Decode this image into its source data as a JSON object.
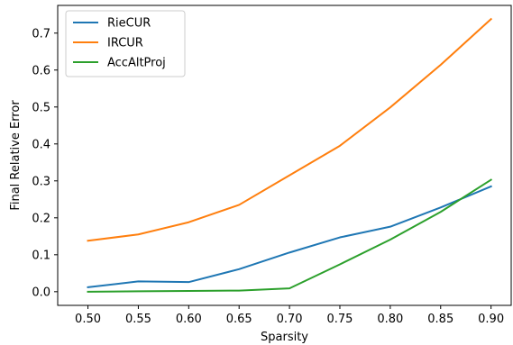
{
  "chart_data": {
    "type": "line",
    "title": "",
    "xlabel": "Sparsity",
    "ylabel": "Final Relative Error",
    "xlim": [
      0.47,
      0.92
    ],
    "ylim": [
      -0.037,
      0.775
    ],
    "x": [
      0.5,
      0.55,
      0.6,
      0.65,
      0.7,
      0.75,
      0.8,
      0.85,
      0.9
    ],
    "xticks": [
      "0.50",
      "0.55",
      "0.60",
      "0.65",
      "0.70",
      "0.75",
      "0.80",
      "0.85",
      "0.90"
    ],
    "yticks": [
      "0.0",
      "0.1",
      "0.2",
      "0.3",
      "0.4",
      "0.5",
      "0.6",
      "0.7"
    ],
    "grid": false,
    "legend_position": "top-left",
    "series": [
      {
        "name": "RieCUR",
        "color": "#1f77b4",
        "values": [
          0.012,
          0.028,
          0.026,
          0.061,
          0.106,
          0.147,
          0.176,
          0.228,
          0.285
        ]
      },
      {
        "name": "IRCUR",
        "color": "#ff7f0e",
        "values": [
          0.138,
          0.155,
          0.188,
          0.235,
          0.315,
          0.395,
          0.499,
          0.614,
          0.738
        ]
      },
      {
        "name": "AccAltProj",
        "color": "#2ca02c",
        "values": [
          0.0,
          0.001,
          0.002,
          0.003,
          0.009,
          0.074,
          0.141,
          0.216,
          0.303
        ]
      }
    ]
  }
}
